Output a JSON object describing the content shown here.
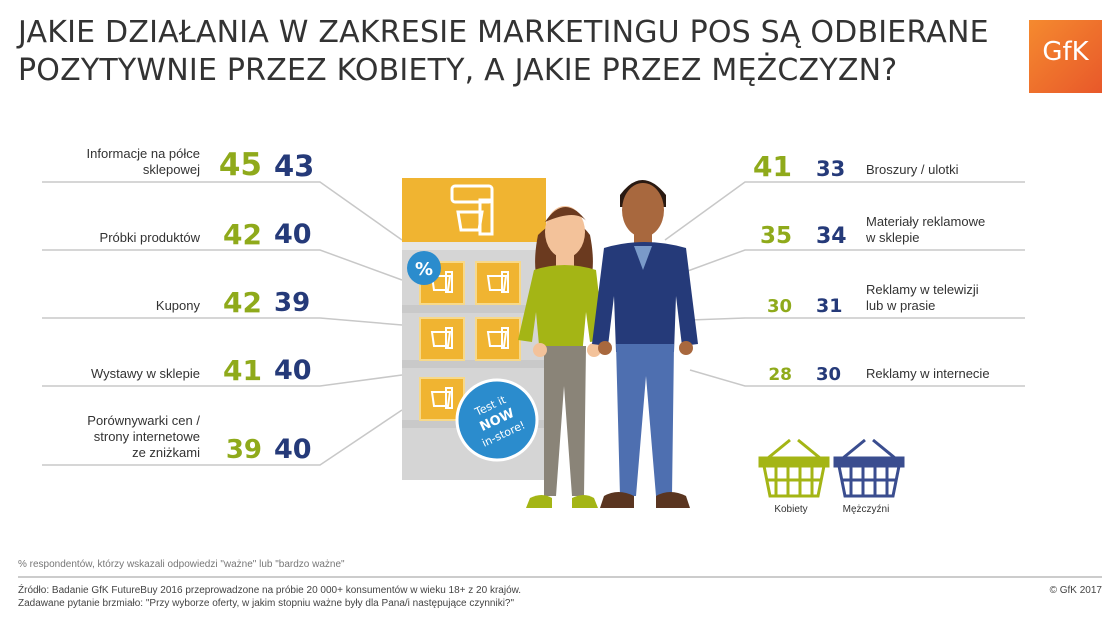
{
  "title_line1": "JAKIE DZIAŁANIA W ZAKRESIE MARKETINGU POS SĄ ODBIERANE",
  "title_line2": "POZYTYWNIE PRZEZ KOBIETY, A JAKIE PRZEZ MĘŻCZYZN?",
  "logo_text": "GfK",
  "display": {
    "tag_percent": "%",
    "badge_line1": "Test it",
    "badge_line2": "NOW",
    "badge_line3": "in-store!"
  },
  "legend": {
    "women": "Kobiety",
    "men": "Mężczyźni",
    "women_color": "#8faa1b",
    "men_color": "#253a79"
  },
  "note": "% respondentów, którzy wskazali odpowiedzi \"ważne\" lub \"bardzo ważne\"",
  "source": "Źródło: Badanie GfK FutureBuy 2016 przeprowadzone na próbie 20 000+ konsumentów w wieku 18+ z 20 krajów.",
  "question": "Zadawane pytanie brzmiało: \"Przy wyborze oferty, w jakim stopniu ważne były dla Pana/i następujące czynniki?\"",
  "copyright": "© GfK 2017",
  "chart_data": {
    "type": "table",
    "series": [
      {
        "name": "Kobiety",
        "color": "#8faa1b"
      },
      {
        "name": "Mężczyźni",
        "color": "#253a79"
      }
    ],
    "left_items": [
      {
        "label_lines": [
          "Informacje na półce",
          "sklepowej"
        ],
        "women": 45,
        "men": 43
      },
      {
        "label_lines": [
          "Próbki produktów"
        ],
        "women": 42,
        "men": 40
      },
      {
        "label_lines": [
          "Kupony"
        ],
        "women": 42,
        "men": 39
      },
      {
        "label_lines": [
          "Wystawy w sklepie"
        ],
        "women": 41,
        "men": 40
      },
      {
        "label_lines": [
          "Porównywarki cen /",
          "strony internetowe",
          "ze zniżkami"
        ],
        "women": 39,
        "men": 40
      }
    ],
    "right_items": [
      {
        "label_lines": [
          "Broszury / ulotki"
        ],
        "women": 41,
        "men": 33
      },
      {
        "label_lines": [
          "Materiały reklamowe",
          "w sklepie"
        ],
        "women": 35,
        "men": 34
      },
      {
        "label_lines": [
          "Reklamy w telewizji",
          "lub w prasie"
        ],
        "women": 30,
        "men": 31
      },
      {
        "label_lines": [
          "Reklamy w internecie"
        ],
        "women": 28,
        "men": 30
      }
    ]
  }
}
